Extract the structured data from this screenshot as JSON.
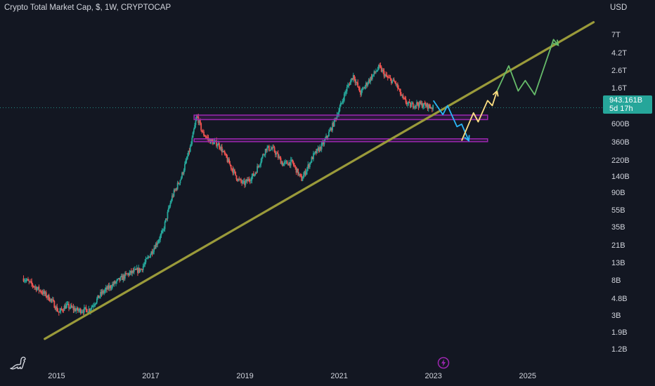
{
  "header": {
    "title": "Crypto Total Market Cap, $, 1W, CRYPTOCAP",
    "currency": "USD"
  },
  "price_badge": {
    "price": "943.161B",
    "countdown": "5d 17h"
  },
  "icons": {
    "logo": "tradingview-dino-icon",
    "event": "lightning-icon"
  },
  "colors": {
    "background": "#131722",
    "candle_up": "#26a69a",
    "candle_down": "#ef5350",
    "trendline": "#9a9a3a",
    "zone": "#9c27b0",
    "path_cyan": "#29b6f6",
    "path_yellow": "#ffe082",
    "path_green": "#66bb6a"
  },
  "chart_data": {
    "type": "candlestick",
    "title": "Crypto Total Market Cap, $, 1W, CRYPTOCAP",
    "y_scale": "log",
    "y_unit": "USD",
    "y_ticks": [
      "7T",
      "4.2T",
      "2.6T",
      "1.6T",
      "600B",
      "360B",
      "220B",
      "140B",
      "90B",
      "55B",
      "35B",
      "21B",
      "13B",
      "8B",
      "4.8B",
      "3B",
      "1.9B",
      "1.2B"
    ],
    "y_tick_values": [
      7000,
      4200,
      2600,
      1600,
      600,
      360,
      220,
      140,
      90,
      55,
      35,
      21,
      13,
      8,
      4.8,
      3,
      1.9,
      1.2
    ],
    "x_ticks": [
      "2015",
      "2017",
      "2019",
      "2021",
      "2023",
      "2025"
    ],
    "x_tick_values": [
      2015,
      2017,
      2019,
      2021,
      2023,
      2025
    ],
    "xlim": [
      2013.8,
      2026.6
    ],
    "last_price": "943.161B",
    "price_path": [
      [
        2014.3,
        8.5
      ],
      [
        2014.5,
        7.0
      ],
      [
        2014.7,
        5.8
      ],
      [
        2014.9,
        4.6
      ],
      [
        2015.05,
        3.3
      ],
      [
        2015.2,
        4.0
      ],
      [
        2015.45,
        3.5
      ],
      [
        2015.7,
        3.6
      ],
      [
        2015.95,
        5.6
      ],
      [
        2016.2,
        7.2
      ],
      [
        2016.5,
        9.5
      ],
      [
        2016.8,
        11
      ],
      [
        2017.0,
        17
      ],
      [
        2017.25,
        30
      ],
      [
        2017.45,
        80
      ],
      [
        2017.65,
        140
      ],
      [
        2017.85,
        330
      ],
      [
        2017.98,
        760
      ],
      [
        2018.1,
        470
      ],
      [
        2018.25,
        380
      ],
      [
        2018.45,
        340
      ],
      [
        2018.65,
        210
      ],
      [
        2018.85,
        130
      ],
      [
        2018.98,
        115
      ],
      [
        2019.2,
        150
      ],
      [
        2019.45,
        310
      ],
      [
        2019.6,
        300
      ],
      [
        2019.8,
        200
      ],
      [
        2020.0,
        210
      ],
      [
        2020.2,
        130
      ],
      [
        2020.45,
        250
      ],
      [
        2020.65,
        340
      ],
      [
        2020.85,
        560
      ],
      [
        2021.0,
        900
      ],
      [
        2021.15,
        1550
      ],
      [
        2021.3,
        2300
      ],
      [
        2021.45,
        1400
      ],
      [
        2021.6,
        1900
      ],
      [
        2021.85,
        2900
      ],
      [
        2022.0,
        2200
      ],
      [
        2022.2,
        1850
      ],
      [
        2022.35,
        1200
      ],
      [
        2022.5,
        1000
      ],
      [
        2022.65,
        1050
      ],
      [
        2022.85,
        1000
      ],
      [
        2023.0,
        943
      ]
    ],
    "annotations": {
      "trendline": [
        [
          2014.75,
          1.6
        ],
        [
          2026.4,
          10000
        ]
      ],
      "zones": [
        {
          "from": 2017.92,
          "to": 2024.15,
          "low": 680,
          "high": 770
        },
        {
          "from": 2017.92,
          "to": 2024.15,
          "low": 370,
          "high": 400
        }
      ],
      "projection_cyan": [
        [
          2023.0,
          1150
        ],
        [
          2023.2,
          780
        ],
        [
          2023.3,
          1000
        ],
        [
          2023.5,
          560
        ],
        [
          2023.6,
          600
        ],
        [
          2023.75,
          380
        ]
      ],
      "projection_yellow": [
        [
          2023.6,
          380
        ],
        [
          2023.85,
          820
        ],
        [
          2023.95,
          640
        ],
        [
          2024.15,
          1150
        ],
        [
          2024.25,
          1000
        ],
        [
          2024.35,
          1500
        ]
      ],
      "projection_green": [
        [
          2024.35,
          1000
        ],
        [
          2024.6,
          3000
        ],
        [
          2024.8,
          1500
        ],
        [
          2024.95,
          2000
        ],
        [
          2025.15,
          1350
        ],
        [
          2025.55,
          6200
        ],
        [
          2025.65,
          5300
        ]
      ]
    }
  }
}
